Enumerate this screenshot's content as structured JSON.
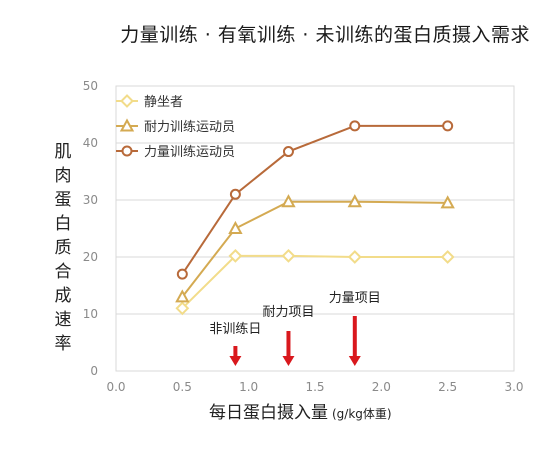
{
  "chart_data": {
    "type": "line",
    "title": "力量训练 · 有氧训练 · 未训练的蛋白质摄入需求",
    "ylabel": "肌肉蛋白质合成速率",
    "xlabel": "每日蛋白摄入量",
    "xunit": "(g/kg体重)",
    "xlim": [
      0.0,
      3.0
    ],
    "ylim": [
      0,
      50
    ],
    "xticks": [
      "0.0",
      "0.5",
      "1.0",
      "1.5",
      "2.0",
      "2.5",
      "3.0"
    ],
    "yticks": [
      "0",
      "10",
      "20",
      "30",
      "40",
      "50"
    ],
    "grid": true,
    "legend": "top-left",
    "series": [
      {
        "name": "静坐者",
        "marker": "diamond",
        "color": "#f2dc8a",
        "x": [
          0.5,
          0.9,
          1.3,
          1.8,
          2.5
        ],
        "y": [
          11,
          20.2,
          20.2,
          20,
          20
        ]
      },
      {
        "name": "耐力训练运动员",
        "marker": "triangle",
        "color": "#d4aa52",
        "x": [
          0.5,
          0.9,
          1.3,
          1.8,
          2.5
        ],
        "y": [
          13,
          25,
          29.7,
          29.7,
          29.5
        ]
      },
      {
        "name": "力量训练运动员",
        "marker": "circle",
        "color": "#b86a3a",
        "x": [
          0.5,
          0.9,
          1.3,
          1.8,
          2.5
        ],
        "y": [
          17,
          31,
          38.5,
          43,
          43
        ]
      }
    ],
    "annotations": [
      {
        "label": "非训练日",
        "x": 0.9
      },
      {
        "label": "耐力项目",
        "x": 1.3
      },
      {
        "label": "力量项目",
        "x": 1.8
      }
    ],
    "arrow_color": "#d9181d"
  }
}
